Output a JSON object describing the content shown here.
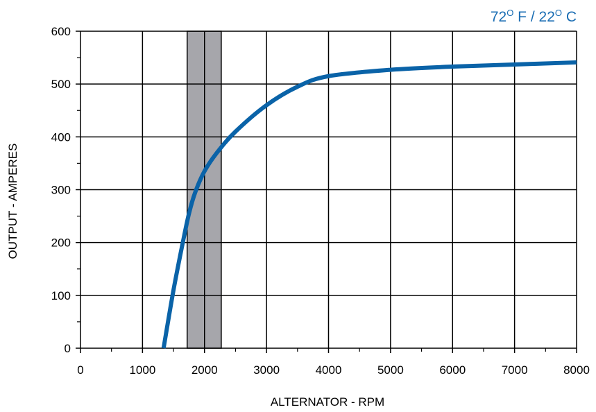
{
  "annotation": {
    "fahrenheit_value": "72",
    "fahrenheit_unit": " F / ",
    "celsius_value": "22",
    "celsius_unit": " C",
    "degree_mark": "O",
    "color": "#1a6db3"
  },
  "chart_data": {
    "type": "line",
    "title": "",
    "xlabel": "ALTERNATOR - RPM",
    "ylabel": "OUTPUT - AMPERES",
    "xlim": [
      0,
      8000
    ],
    "ylim": [
      0,
      600
    ],
    "xticks": [
      0,
      1000,
      2000,
      3000,
      4000,
      5000,
      6000,
      7000,
      8000
    ],
    "yticks": [
      0,
      100,
      200,
      300,
      400,
      500,
      600
    ],
    "x_minor_step": 500,
    "y_minor_step": 50,
    "grid": true,
    "highlight_band": {
      "x_start": 1720,
      "x_end": 2270,
      "color": "#a6a6ab"
    },
    "series": [
      {
        "color": "#0a63a8",
        "x": [
          1340,
          1500,
          1650,
          1750,
          1850,
          2000,
          2200,
          2500,
          3000,
          3500,
          4000,
          5000,
          6000,
          7000,
          8000
        ],
        "y": [
          0,
          110,
          200,
          255,
          295,
          335,
          370,
          410,
          460,
          495,
          515,
          527,
          533,
          537,
          541
        ]
      }
    ]
  }
}
